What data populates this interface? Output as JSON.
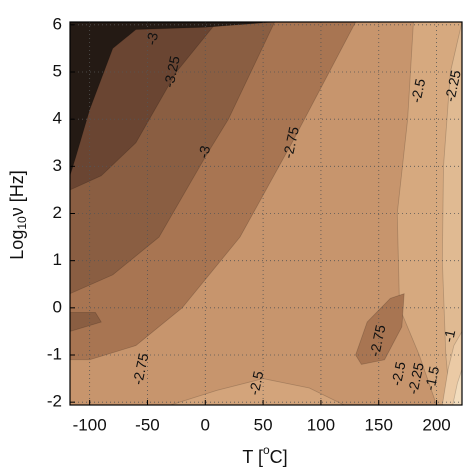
{
  "chart_data": {
    "type": "contour",
    "xlabel": [
      "T [",
      "o",
      "C]"
    ],
    "ylabel": [
      "Log",
      "10",
      "ν [Hz]"
    ],
    "xlim": [
      -117,
      222
    ],
    "ylim": [
      -2.06,
      6.06
    ],
    "xticks": [
      -100,
      -50,
      0,
      50,
      100,
      150,
      200
    ],
    "yticks": [
      -2,
      -1,
      0,
      1,
      2,
      3,
      4,
      5,
      6
    ],
    "grid": true,
    "regions": [
      {
        "color": "#c7956d",
        "x": [
          -117,
          222,
          222,
          -117
        ],
        "y": [
          -2.06,
          -2.06,
          6.06,
          6.06
        ]
      },
      {
        "color": "#d6a97f",
        "x": [
          180,
          175,
          166,
          168,
          185,
          200,
          222,
          222
        ],
        "y": [
          6.06,
          4,
          2,
          0,
          -1,
          -2.06,
          -2.06,
          6.06
        ]
      },
      {
        "color": "#e0ba92",
        "x": [
          222,
          212,
          206,
          205,
          208,
          212,
          222
        ],
        "y": [
          6.06,
          5,
          3,
          1,
          -1,
          -2.06,
          -2.06
        ]
      },
      {
        "color": "#ebcaa5",
        "x": [
          222,
          215,
          210,
          205,
          222
        ],
        "y": [
          -0.5,
          -0.8,
          -1.3,
          -2.06,
          -2.06
        ]
      },
      {
        "color": "#f2dcbd",
        "x": [
          222,
          218,
          214,
          222
        ],
        "y": [
          -1.3,
          -1.6,
          -2.06,
          -2.06
        ]
      },
      {
        "color": "#a87552",
        "x": [
          130,
          140,
          160,
          172,
          170,
          155,
          135
        ],
        "y": [
          -1.0,
          -0.3,
          0.2,
          0.3,
          -0.4,
          -1.1,
          -1.2
        ]
      },
      {
        "color": "#d3a47b",
        "x": [
          -30,
          10,
          50,
          90,
          120
        ],
        "y": [
          -2.06,
          -1.75,
          -1.5,
          -1.7,
          -2.06
        ]
      },
      {
        "color": "#a87552",
        "x": [
          -117,
          -117,
          130,
          75,
          30,
          -20,
          -60,
          -100
        ],
        "y": [
          -1.1,
          6.06,
          6.06,
          3.5,
          1.5,
          0,
          -0.8,
          -1.1
        ]
      },
      {
        "color": "#8a5e42",
        "x": [
          -117,
          -117,
          60,
          20,
          0,
          -40,
          -80,
          -117
        ],
        "y": [
          0.3,
          6.06,
          6.06,
          4,
          3.2,
          1.5,
          0.7,
          0.3
        ]
      },
      {
        "color": "#8a5e42",
        "x": [
          -117,
          -95,
          -90,
          -117
        ],
        "y": [
          -0.1,
          -0.1,
          -0.3,
          -0.5
        ]
      },
      {
        "color": "#6a4532",
        "x": [
          -117,
          -117,
          10,
          -25,
          -60,
          -90,
          -117
        ],
        "y": [
          2.5,
          6.06,
          6.06,
          5,
          3.5,
          2.8,
          2.5
        ]
      },
      {
        "color": "#241a14",
        "x": [
          -117,
          -117,
          60,
          0,
          -60,
          -80,
          -100,
          -112
        ],
        "y": [
          2.8,
          6.06,
          6.06,
          5.95,
          5.9,
          5.5,
          4.2,
          3.2
        ]
      }
    ],
    "annotations": [
      {
        "text": "-3",
        "x": -45,
        "y": 5.7
      },
      {
        "text": "-3.25",
        "x": -28,
        "y": 5.0
      },
      {
        "text": "-3",
        "x": 0,
        "y": 3.3
      },
      {
        "text": "-2.75",
        "x": 75,
        "y": 3.5
      },
      {
        "text": "-2.5",
        "x": 185,
        "y": 4.6
      },
      {
        "text": "-2.25",
        "x": 215,
        "y": 4.7
      },
      {
        "text": "-2.75",
        "x": -55,
        "y": -1.3
      },
      {
        "text": "-2.5",
        "x": 45,
        "y": -1.6
      },
      {
        "text": "-2.75",
        "x": 150,
        "y": -0.7
      },
      {
        "text": "-2.5",
        "x": 168,
        "y": -1.4
      },
      {
        "text": "-2.25",
        "x": 183,
        "y": -1.5
      },
      {
        "text": "-1.5",
        "x": 197,
        "y": -1.5
      },
      {
        "text": "-1",
        "x": 212,
        "y": -0.6
      }
    ]
  }
}
